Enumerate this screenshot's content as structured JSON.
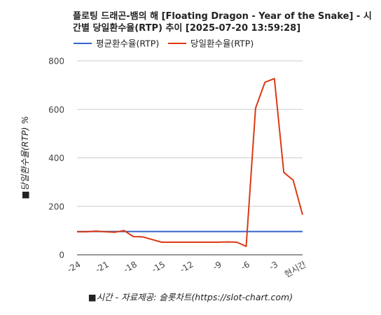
{
  "chart_data": {
    "type": "line",
    "title_lines": [
      "플로팅 드래곤-뱀의 해 [Floating Dragon - Year of the Snake] - 시",
      "간별 당일환수율(RTP) 추이 [2025-07-20 13:59:28]"
    ],
    "xlabel": "■시간 - 자료제공: 슬롯차트(https://slot-chart.com)",
    "ylabel": "■당일환수율(RTP) %",
    "x": [
      -24,
      -23,
      -22,
      -21,
      -20,
      -19,
      -18,
      -17,
      -16,
      -15,
      -14,
      -13,
      -12,
      -11,
      -10,
      -9,
      -8,
      -7,
      -6,
      -5,
      -4,
      -3,
      -2,
      -1,
      0
    ],
    "x_tick_labels": [
      "-24",
      "-21",
      "-18",
      "-15",
      "-12",
      "-9",
      "-6",
      "-3",
      "현시간"
    ],
    "x_tick_values": [
      -24,
      -21,
      -18,
      -15,
      -12,
      -9,
      -6,
      -3,
      0
    ],
    "xlim": [
      -24,
      0
    ],
    "ylim": [
      0,
      800
    ],
    "y_ticks": [
      0,
      200,
      400,
      600,
      800
    ],
    "grid": true,
    "legend_position": "top",
    "series": [
      {
        "name": "평균환수율(RTP)",
        "color": "#3366cc",
        "values": [
          96,
          96,
          96,
          96,
          96,
          96,
          96,
          96,
          96,
          96,
          96,
          96,
          96,
          96,
          96,
          96,
          96,
          96,
          96,
          96,
          96,
          96,
          96,
          96,
          96
        ]
      },
      {
        "name": "당일환수율(RTP)",
        "color": "#dc3912",
        "values": [
          95,
          95,
          98,
          95,
          93,
          100,
          75,
          74,
          63,
          52,
          52,
          52,
          52,
          52,
          52,
          52,
          53,
          52,
          35,
          605,
          712,
          727,
          340,
          308,
          165
        ]
      }
    ]
  }
}
